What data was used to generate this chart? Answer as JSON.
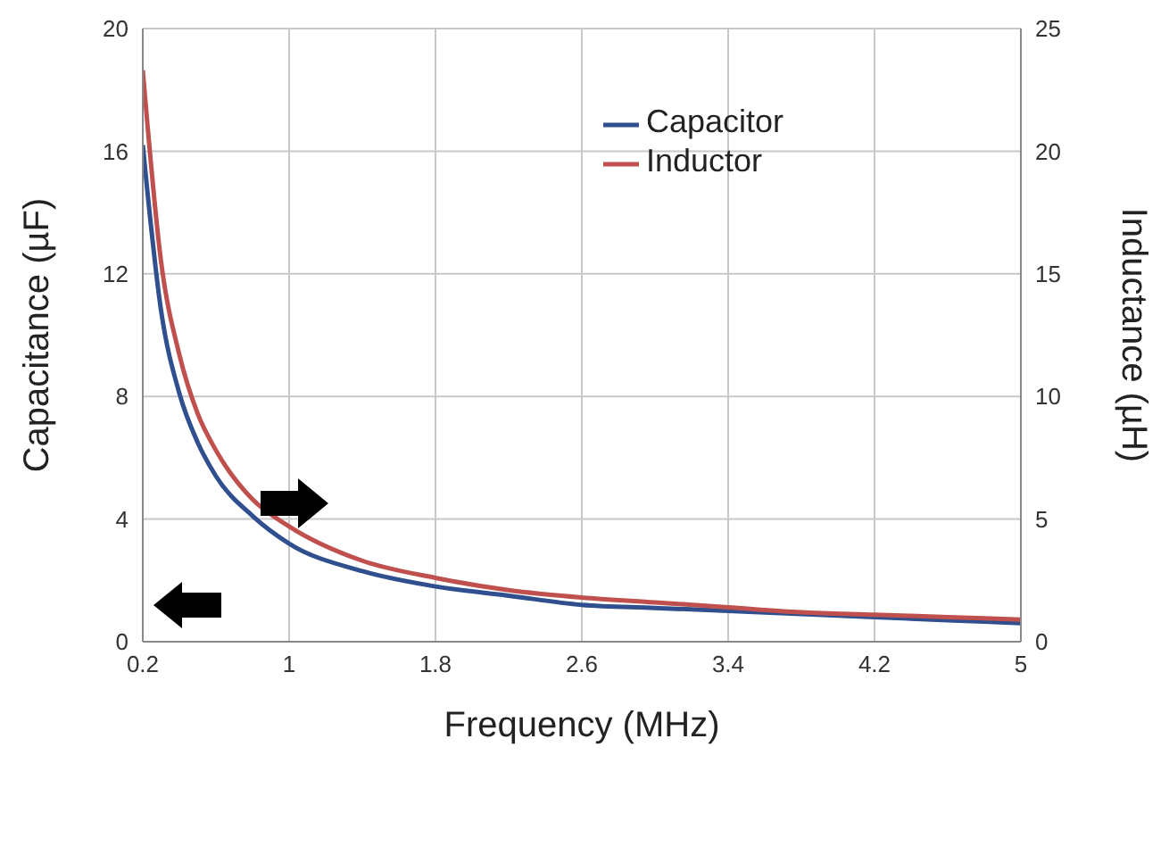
{
  "chart_data": {
    "type": "line",
    "xlabel": "Frequency (MHz)",
    "ylabel": "Capacitance (µF)",
    "y2label": "Inductance (µH)",
    "x": [
      0.2,
      0.3,
      0.4,
      0.5,
      0.6,
      0.8,
      1,
      1.4,
      1.8,
      2.2,
      2.6,
      3,
      3.4,
      3.8,
      4.2,
      4.6,
      5
    ],
    "series": [
      {
        "name": "Capacitor",
        "color": "#2f4f8f",
        "values": [
          16.2,
          10.8,
          8.1,
          6.5,
          5.4,
          4.1,
          3.2,
          2.3,
          1.8,
          1.5,
          1.2,
          1.1,
          1.0,
          0.9,
          0.8,
          0.7,
          0.6
        ]
      },
      {
        "name": "Inductor",
        "color": "#c0504d",
        "axis": "y2",
        "values": [
          23.3,
          15.5,
          11.7,
          9.3,
          7.8,
          5.8,
          4.7,
          3.3,
          2.6,
          2.1,
          1.8,
          1.6,
          1.4,
          1.2,
          1.1,
          1.0,
          0.9
        ]
      }
    ],
    "xlim": [
      0.2,
      5
    ],
    "xticks": [
      0.2,
      1,
      1.8,
      2.6,
      3.4,
      4.2,
      5
    ],
    "ylim": [
      0,
      20
    ],
    "yticks": [
      0,
      4,
      8,
      12,
      16,
      20
    ],
    "y2lim": [
      0,
      25
    ],
    "y2ticks": [
      0,
      5,
      10,
      15,
      20,
      25
    ],
    "grid": true,
    "legend": "top right",
    "marker": "none",
    "line_style": "solid"
  }
}
